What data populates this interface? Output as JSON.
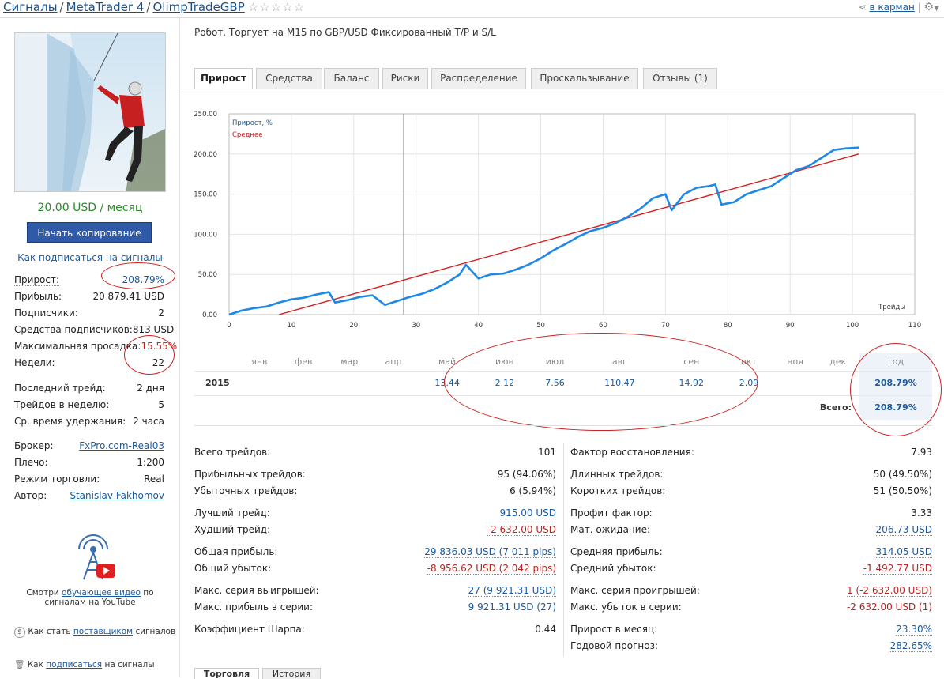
{
  "breadcrumb": [
    "Сигналы",
    "MetaTrader 4",
    "OlimpTradeGBP"
  ],
  "header": {
    "bookmark_label": "в карман"
  },
  "sidebar": {
    "price": "20.00 USD / месяц",
    "copy_button": "Начать копирование →",
    "how_subscribe_link": "Как подписаться на сигналы",
    "stats": [
      {
        "label": "Прирост:",
        "value": "208.79%"
      },
      {
        "label": "Прибыль:",
        "value": "20 879.41 USD"
      },
      {
        "label": "Подписчики:",
        "value": "2"
      },
      {
        "label": "Средства подписчиков:",
        "value": "813 USD"
      },
      {
        "label": "Максимальная просадка:",
        "value": "15.55%"
      },
      {
        "label": "Недели:",
        "value": "22"
      }
    ],
    "stats2": [
      {
        "label": "Последний трейд:",
        "value": "2 дня"
      },
      {
        "label": "Трейдов в неделю:",
        "value": "5"
      },
      {
        "label": "Ср. время удержания:",
        "value": "2 часа"
      }
    ],
    "stats3": [
      {
        "label": "Брокер:",
        "value": "FxPro.com-Real03"
      },
      {
        "label": "Плечо:",
        "value": "1:200"
      },
      {
        "label": "Режим торговли:",
        "value": "Real"
      },
      {
        "label": "Автор:",
        "value": "Stanislav Fakhomov"
      }
    ],
    "video_text_1": "Смотри",
    "video_link": "обучающее видео",
    "video_text_2": "по сигналам на YouTube",
    "provider_text_1": "Как стать",
    "provider_link": "поставщиком",
    "provider_text_2": "сигналов",
    "subscribe_text_1": "Как",
    "subscribe_link": "подписаться",
    "subscribe_text_2": "на сигналы"
  },
  "description": "Робот. Торгует на M15 по GBP/USD  Фиксированный T/P и S/L",
  "tabs": [
    "Прирост",
    "Средства",
    "Баланс",
    "Риски",
    "Распределение",
    "Проскальзывание",
    "Отзывы (1)"
  ],
  "chart_data": {
    "type": "line",
    "xlabel": "Трейды",
    "ylabel": "",
    "xlim": [
      0,
      110
    ],
    "ylim": [
      0,
      250
    ],
    "x_ticks": [
      "0",
      "10",
      "20",
      "30",
      "40",
      "50",
      "60",
      "70",
      "80",
      "90",
      "100",
      "110"
    ],
    "y_ticks": [
      "0.00",
      "50.00",
      "100.00",
      "150.00",
      "200.00",
      "250.00"
    ],
    "grid": true,
    "legend": "top-left",
    "colors": {
      "growth": "#1e88e5",
      "average": "#d62020"
    },
    "series": [
      {
        "name": "Прирост, %",
        "x": [
          0,
          2,
          4,
          6,
          8,
          10,
          12,
          14,
          16,
          17,
          19,
          21,
          23,
          25,
          27,
          29,
          31,
          33,
          35,
          37,
          38,
          40,
          42,
          44,
          46,
          48,
          50,
          52,
          54,
          56,
          58,
          60,
          62,
          64,
          66,
          68,
          70,
          71,
          73,
          75,
          77,
          78,
          79,
          81,
          83,
          85,
          87,
          89,
          91,
          93,
          95,
          97,
          99,
          101
        ],
        "y": [
          0,
          5,
          8,
          10,
          15,
          19,
          21,
          25,
          28,
          15,
          18,
          22,
          24,
          12,
          17,
          22,
          26,
          32,
          40,
          50,
          62,
          45,
          50,
          51,
          56,
          62,
          70,
          80,
          88,
          97,
          104,
          108,
          114,
          122,
          132,
          145,
          150,
          130,
          150,
          158,
          160,
          162,
          137,
          140,
          150,
          155,
          160,
          170,
          180,
          185,
          195,
          205,
          207,
          208
        ]
      },
      {
        "name": "Среднее",
        "x": [
          8,
          101
        ],
        "y": [
          0,
          200
        ]
      }
    ],
    "cursor_x": 28
  },
  "month_table": {
    "months": [
      "янв",
      "фев",
      "мар",
      "апр",
      "май",
      "июн",
      "июл",
      "авг",
      "сен",
      "окт",
      "ноя",
      "дек"
    ],
    "year_header": "год",
    "year": "2015",
    "values": [
      "",
      "",
      "",
      "",
      "13.44",
      "2.12",
      "7.56",
      "110.47",
      "14.92",
      "2.09",
      "",
      ""
    ],
    "year_total": "208.79%",
    "total_label": "Всего:",
    "total": "208.79%"
  },
  "summary_left": [
    {
      "label": "Всего трейдов:",
      "value": "101"
    },
    {
      "label": "Прибыльных трейдов:",
      "value": "95 (94.06%)"
    },
    {
      "label": "Убыточных трейдов:",
      "value": "6 (5.94%)"
    },
    {
      "label": "Лучший трейд:",
      "value": "915.00 USD"
    },
    {
      "label": "Худший трейд:",
      "value": "-2 632.00 USD"
    },
    {
      "label": "Общая прибыль:",
      "value": "29 836.03 USD (7 011 pips)"
    },
    {
      "label": "Общий убыток:",
      "value": "-8 956.62 USD (2 042 pips)"
    },
    {
      "label": "Макс. серия выигрышей:",
      "value": "27 (9 921.31 USD)"
    },
    {
      "label": "Макс. прибыль в серии:",
      "value": "9 921.31 USD (27)"
    },
    {
      "label": "Коэффициент Шарпа:",
      "value": "0.44"
    }
  ],
  "summary_right": [
    {
      "label": "Фактор восстановления:",
      "value": "7.93"
    },
    {
      "label": "Длинных трейдов:",
      "value": "50 (49.50%)"
    },
    {
      "label": "Коротких трейдов:",
      "value": "51 (50.50%)"
    },
    {
      "label": "Профит фактор:",
      "value": "3.33"
    },
    {
      "label": "Мат. ожидание:",
      "value": "206.73 USD"
    },
    {
      "label": "Средняя прибыль:",
      "value": "314.05 USD"
    },
    {
      "label": "Средний убыток:",
      "value": "-1 492.77 USD"
    },
    {
      "label": "Макс. серия проигрышей:",
      "value": "1 (-2 632.00 USD)"
    },
    {
      "label": "Макс. убыток в серии:",
      "value": "-2 632.00 USD (1)"
    },
    {
      "label": "Прирост в месяц:",
      "value": "23.30%"
    },
    {
      "label": "Годовой прогноз:",
      "value": "282.65%"
    }
  ],
  "bottom_tabs": [
    "Торговля",
    "История"
  ]
}
